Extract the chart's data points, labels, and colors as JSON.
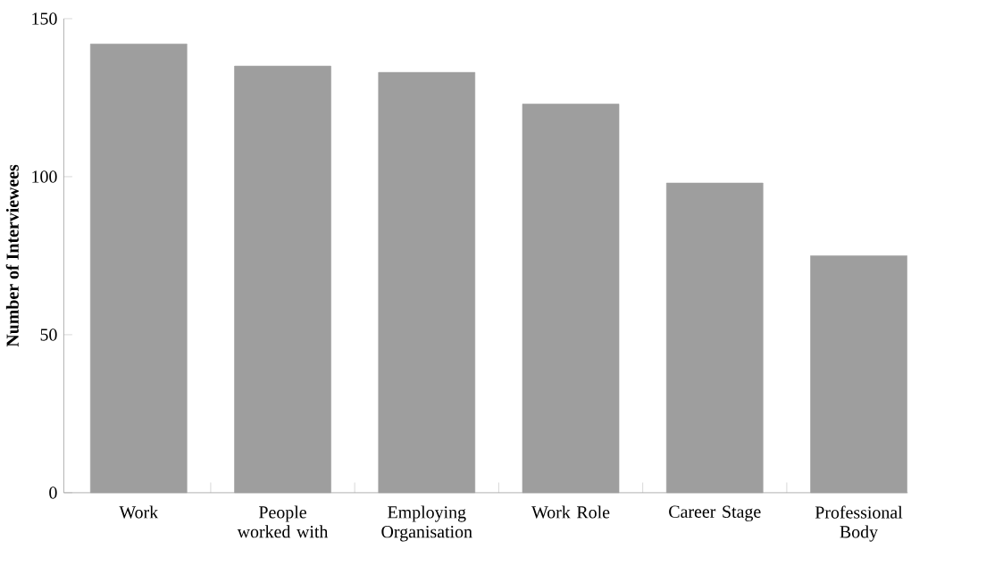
{
  "chart_data": {
    "type": "bar",
    "ylabel": "Number of Interviewees",
    "categories": [
      "Work",
      "People worked with",
      "Employing Organisation",
      "Work Role",
      "Career Stage",
      "Professional Body"
    ],
    "values": [
      142,
      135,
      133,
      123,
      98,
      75
    ],
    "color": "#9e9e9e",
    "ylim": [
      0,
      150
    ],
    "yticks": [
      0,
      50,
      100,
      150
    ]
  }
}
